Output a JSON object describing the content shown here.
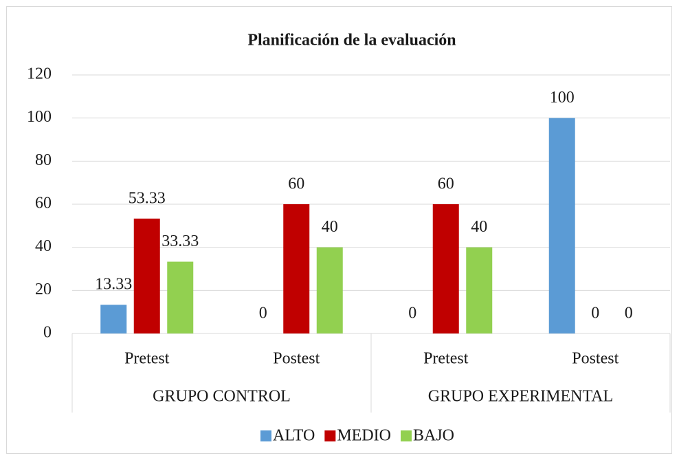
{
  "chart_data": {
    "type": "bar",
    "title": "Planificación de la evaluación",
    "categories": [
      "Pretest",
      "Postest",
      "Pretest",
      "Postest"
    ],
    "category_groups": [
      "GRUPO CONTROL",
      "GRUPO CONTROL",
      "GRUPO EXPERIMENTAL",
      "GRUPO EXPERIMENTAL"
    ],
    "series": [
      {
        "name": "ALTO",
        "color": "#5b9bd5",
        "values": [
          13.33,
          0,
          0,
          100
        ]
      },
      {
        "name": "MEDIO",
        "color": "#c00000",
        "values": [
          53.33,
          60,
          60,
          0
        ]
      },
      {
        "name": "BAJO",
        "color": "#92d050",
        "values": [
          33.33,
          40,
          40,
          0
        ]
      }
    ],
    "ylim": [
      0,
      120
    ],
    "yticks": [
      0,
      20,
      40,
      60,
      80,
      100,
      120
    ],
    "grid": true,
    "legend": "bottom"
  }
}
